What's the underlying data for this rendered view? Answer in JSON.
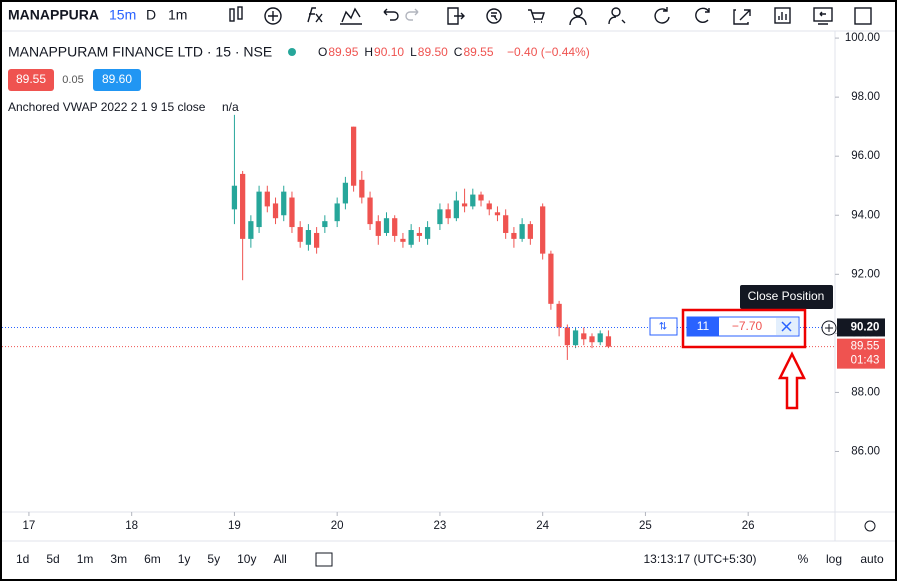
{
  "toolbar": {
    "symbol": "MANAPPURA",
    "interval": "15m",
    "buttons": [
      "D",
      "1m"
    ]
  },
  "legend": {
    "title": "MANAPPURAM FINANCE LTD · 15 · NSE",
    "ohlc": [
      {
        "key": "O",
        "val": "89.95"
      },
      {
        "key": "H",
        "val": "90.10"
      },
      {
        "key": "L",
        "val": "89.50"
      },
      {
        "key": "C",
        "val": "89.55"
      }
    ],
    "change": "−0.40 (−0.44%)",
    "sell": "89.55",
    "spread": "0.05",
    "buy": "89.60",
    "indicator": "Anchored VWAP 2022 2 1 9 15 close",
    "indicator_value": "n/a"
  },
  "position": {
    "qty": "11",
    "pnl": "−7.70",
    "tooltip": "Close Position",
    "countdown": "01:43"
  },
  "chart_data": {
    "type": "candlestick",
    "x": [
      2.0,
      2.08,
      2.16,
      2.24,
      2.32,
      2.4,
      2.48,
      2.56,
      2.64,
      2.72,
      2.8,
      2.88,
      3.0,
      3.08,
      3.16,
      3.24,
      3.32,
      3.4,
      3.48,
      3.56,
      3.64,
      3.72,
      3.8,
      3.88,
      4.0,
      4.08,
      4.16,
      4.24,
      4.32,
      4.4,
      4.48,
      4.56,
      4.64,
      4.72,
      4.8,
      4.88,
      5.0,
      5.08,
      5.16,
      5.24,
      5.32,
      5.4,
      5.48,
      5.56,
      5.64
    ],
    "open": [
      94.2,
      95.4,
      93.2,
      93.6,
      94.8,
      94.4,
      94.0,
      94.6,
      93.6,
      93.0,
      93.4,
      93.6,
      93.8,
      94.4,
      97.0,
      95.2,
      94.6,
      93.8,
      93.4,
      93.9,
      93.2,
      93.0,
      93.4,
      93.2,
      93.7,
      94.2,
      93.9,
      94.4,
      94.3,
      94.7,
      94.4,
      94.1,
      94.0,
      93.4,
      93.2,
      93.7,
      94.3,
      92.7,
      91.0,
      90.2,
      89.6,
      90.0,
      89.9,
      89.7,
      89.9
    ],
    "high": [
      97.4,
      95.5,
      94.0,
      95.0,
      95.0,
      94.6,
      95.0,
      94.8,
      93.8,
      93.7,
      93.6,
      94.0,
      94.6,
      95.3,
      97.0,
      95.5,
      94.8,
      94.0,
      94.1,
      94.0,
      93.4,
      93.7,
      93.6,
      93.8,
      94.4,
      94.4,
      94.8,
      94.9,
      94.9,
      94.8,
      94.5,
      94.3,
      94.2,
      93.6,
      93.9,
      93.8,
      94.4,
      92.8,
      91.1,
      90.3,
      90.2,
      90.2,
      90.0,
      90.1,
      90.1
    ],
    "low": [
      93.7,
      91.8,
      92.9,
      93.4,
      94.1,
      93.7,
      93.8,
      93.4,
      92.9,
      92.8,
      92.7,
      93.4,
      93.6,
      94.2,
      94.8,
      94.4,
      93.5,
      93.0,
      93.3,
      93.1,
      92.9,
      92.9,
      93.1,
      93.0,
      93.5,
      93.7,
      93.8,
      94.1,
      94.2,
      94.3,
      94.0,
      93.8,
      93.2,
      92.9,
      93.1,
      93.0,
      92.5,
      90.8,
      89.9,
      89.1,
      89.5,
      89.6,
      89.5,
      89.6,
      89.5
    ],
    "close": [
      95.0,
      93.2,
      93.8,
      94.8,
      94.3,
      93.9,
      94.8,
      93.6,
      93.1,
      93.5,
      92.9,
      93.8,
      94.4,
      95.1,
      95.0,
      94.6,
      93.7,
      93.3,
      93.9,
      93.3,
      93.1,
      93.5,
      93.3,
      93.6,
      94.2,
      93.9,
      94.5,
      94.3,
      94.7,
      94.5,
      94.2,
      94.0,
      93.4,
      93.2,
      93.7,
      93.2,
      92.7,
      91.0,
      90.2,
      89.6,
      90.1,
      89.8,
      89.7,
      90.0,
      89.55
    ],
    "up_color": "#26a69a",
    "down_color": "#ef5350",
    "xlim": [
      -0.262,
      7.845
    ],
    "ylim": [
      83.95,
      100.24
    ],
    "xticks": [
      {
        "value": 0,
        "label": "17"
      },
      {
        "value": 1,
        "label": "18"
      },
      {
        "value": 2,
        "label": "19"
      },
      {
        "value": 3,
        "label": "20"
      },
      {
        "value": 4,
        "label": "23"
      },
      {
        "value": 5,
        "label": "24"
      },
      {
        "value": 6,
        "label": "25"
      },
      {
        "value": 7,
        "label": "26"
      }
    ],
    "yticks": [
      {
        "value": 86,
        "label": "86.00"
      },
      {
        "value": 88,
        "label": "88.00"
      },
      {
        "value": 90,
        "label": "90.00"
      },
      {
        "value": 92,
        "label": "92.00"
      },
      {
        "value": 94,
        "label": "94.00"
      },
      {
        "value": 96,
        "label": "96.00"
      },
      {
        "value": 98,
        "label": "98.00"
      },
      {
        "value": 100,
        "label": "100.00"
      }
    ],
    "position_price": {
      "value": 90.2,
      "label": "90.20",
      "color": "#2962ff"
    },
    "last_price": {
      "value": 89.55,
      "label": "89.55",
      "color": "#ef5350"
    }
  },
  "footer": {
    "ranges": [
      "1d",
      "5d",
      "1m",
      "3m",
      "6m",
      "1y",
      "5y",
      "10y",
      "All"
    ],
    "time": "13:13:17 (UTC+5:30)",
    "options": [
      "%",
      "log",
      "auto"
    ]
  }
}
